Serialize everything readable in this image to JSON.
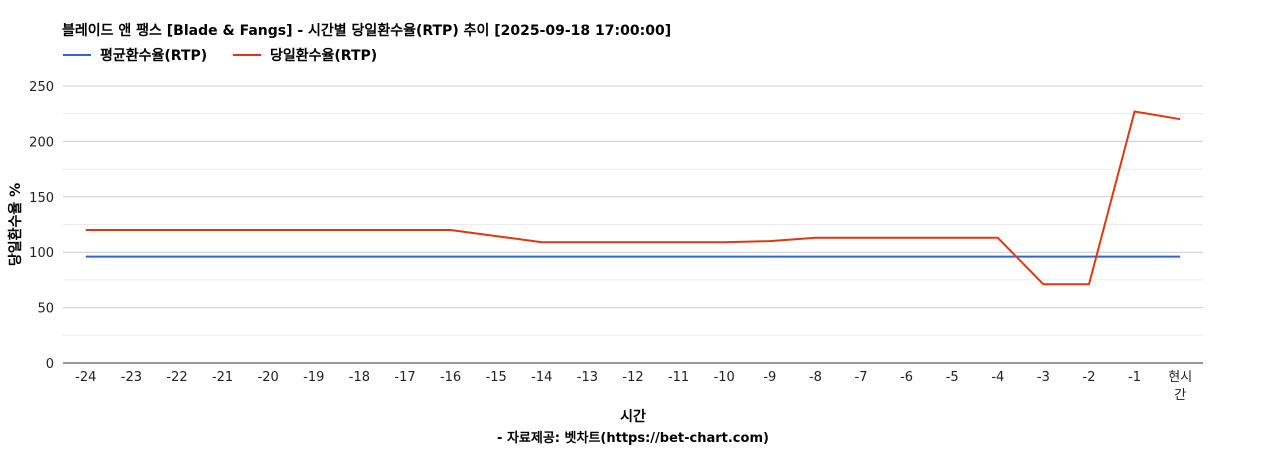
{
  "chart_data": {
    "type": "line",
    "title": "블레이드 앤 팽스 [Blade & Fangs] - 시간별 당일환수율(RTP) 추이 [2025-09-18 17:00:00]",
    "xlabel": "시간",
    "ylabel": "당일환수율 %",
    "source": "- 자료제공: 벳차트(https://bet-chart.com)",
    "categories": [
      "-24",
      "-23",
      "-22",
      "-21",
      "-20",
      "-19",
      "-18",
      "-17",
      "-16",
      "-15",
      "-14",
      "-13",
      "-12",
      "-11",
      "-10",
      "-9",
      "-8",
      "-7",
      "-6",
      "-5",
      "-4",
      "-3",
      "-2",
      "-1",
      "현시간"
    ],
    "y_ticks": [
      "0",
      "50",
      "100",
      "150",
      "200",
      "250"
    ],
    "ylim": [
      0,
      250
    ],
    "grid": true,
    "legend_position": "top-left",
    "series": [
      {
        "name": "평균환수율(RTP)",
        "color": "#3366cc",
        "values": [
          96,
          96,
          96,
          96,
          96,
          96,
          96,
          96,
          96,
          96,
          96,
          96,
          96,
          96,
          96,
          96,
          96,
          96,
          96,
          96,
          96,
          96,
          96,
          96,
          96
        ]
      },
      {
        "name": "당일환수율(RTP)",
        "color": "#dc3912",
        "values": [
          120,
          120,
          120,
          120,
          120,
          120,
          120,
          120,
          120,
          114.5,
          109,
          109,
          109,
          109,
          109,
          110,
          113,
          113,
          113,
          113,
          113,
          71,
          71,
          227,
          220
        ]
      }
    ]
  }
}
